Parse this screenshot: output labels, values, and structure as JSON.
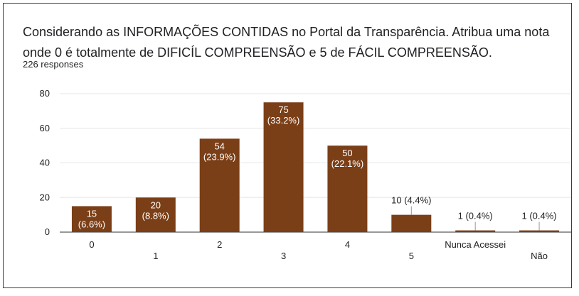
{
  "question": {
    "title": "Considerando as INFORMAÇÕES CONTIDAS no Portal da Transparência. Atribua uma nota onde 0 é totalmente de DIFICÍL COMPREENSÃO e 5 de FÁCIL COMPREENSÃO.",
    "responses": "226 responses"
  },
  "chart_data": {
    "type": "bar",
    "categories": [
      "0",
      "1",
      "2",
      "3",
      "4",
      "5",
      "Nunca Acessei",
      "Não"
    ],
    "values": [
      15,
      20,
      54,
      75,
      50,
      10,
      1,
      1
    ],
    "labels": [
      [
        "15",
        "(6.6%)"
      ],
      [
        "20",
        "(8.8%)"
      ],
      [
        "54",
        "(23.9%)"
      ],
      [
        "75",
        "(33.2%)"
      ],
      [
        "50",
        "(22.1%)"
      ],
      [
        "10 (4.4%)"
      ],
      [
        "1 (0.4%)"
      ],
      [
        "1 (0.4%)"
      ]
    ],
    "yticks": [
      0,
      20,
      40,
      60,
      80
    ],
    "ylim": [
      0,
      80
    ],
    "xlabel": "",
    "ylabel": "",
    "grid": true,
    "bar_color": "#7b3f17"
  }
}
